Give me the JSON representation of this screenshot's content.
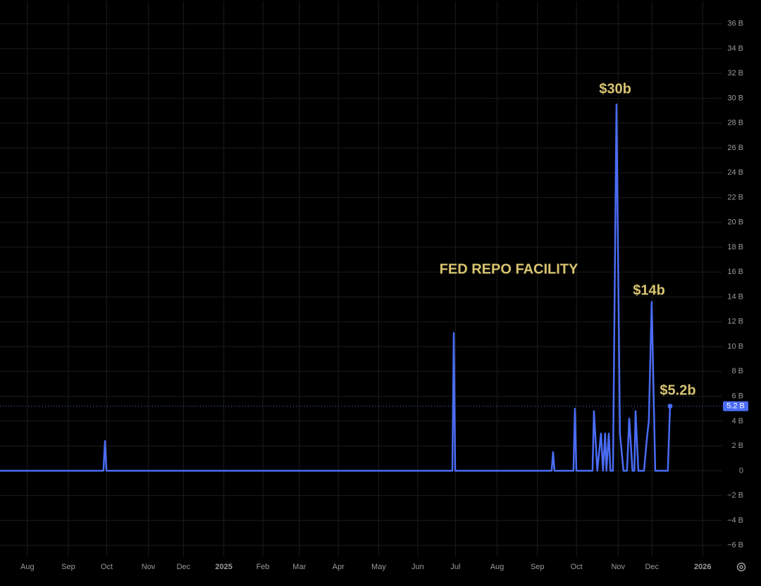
{
  "chart_data": {
    "type": "line",
    "color": "#4a6cf5",
    "annotations": [
      "FED REPO FACILITY",
      "$30b",
      "$14b",
      "$5.2b"
    ],
    "x": [
      0,
      79.5,
      80.7,
      81.8,
      347.6,
      348.7,
      349.8,
      423.9,
      425,
      426.1,
      440.7,
      441.8,
      442.9,
      455.3,
      456.4,
      459,
      461.8,
      463.4,
      465,
      466,
      467.8,
      469,
      471,
      473.7,
      476.4,
      479.1,
      481.8,
      483.5,
      486,
      487.5,
      488.4,
      490.5,
      494.9,
      497,
      498.6,
      500.8,
      503.5,
      513.2,
      514.9
    ],
    "values": [
      0,
      0,
      2.4,
      0,
      0,
      11.1,
      0,
      0,
      1.5,
      0,
      0,
      5.0,
      0,
      0,
      4.8,
      0,
      3,
      0,
      3,
      0,
      3,
      0,
      0,
      29.5,
      3,
      0,
      0,
      4.2,
      0,
      0,
      4.8,
      0,
      0,
      2.5,
      4,
      13.6,
      0,
      0,
      5.2
    ],
    "value_labels": [
      null,
      null,
      null,
      null,
      null,
      null,
      null,
      null,
      null,
      null,
      null,
      null,
      null,
      null,
      null,
      null,
      null,
      null,
      null,
      null,
      null,
      null,
      null,
      null,
      null,
      null,
      null,
      null,
      null,
      null,
      null,
      null,
      null,
      null,
      null,
      null,
      null,
      null,
      "5.2 B"
    ],
    "xlim": [
      0,
      555
    ],
    "xticks": [
      {
        "value": 21,
        "label": "Aug"
      },
      {
        "value": 52.5,
        "label": "Sep"
      },
      {
        "value": 82,
        "label": "Oct"
      },
      {
        "value": 114,
        "label": "Nov"
      },
      {
        "value": 141,
        "label": "Dec"
      },
      {
        "value": 172,
        "label": "2025"
      },
      {
        "value": 202,
        "label": "Feb"
      },
      {
        "value": 230,
        "label": "Mar"
      },
      {
        "value": 260,
        "label": "Apr"
      },
      {
        "value": 291,
        "label": "May"
      },
      {
        "value": 321,
        "label": "Jun"
      },
      {
        "value": 350,
        "label": "Jul"
      },
      {
        "value": 382,
        "label": "Aug"
      },
      {
        "value": 413,
        "label": "Sep"
      },
      {
        "value": 443,
        "label": "Oct"
      },
      {
        "value": 475,
        "label": "Nov"
      },
      {
        "value": 501,
        "label": "Dec"
      },
      {
        "value": 540,
        "label": "2026"
      }
    ],
    "ylim": [
      -6.9,
      37.8
    ],
    "yticks": [
      {
        "value": -6,
        "label": "−6 B"
      },
      {
        "value": -4,
        "label": "−4 B"
      },
      {
        "value": -2,
        "label": "−2 B"
      },
      0,
      {
        "value": 2,
        "label": "2 B"
      },
      {
        "value": 4,
        "label": "4 B"
      },
      {
        "value": 6,
        "label": "6 B"
      },
      {
        "value": 8,
        "label": "8 B"
      },
      {
        "value": 10,
        "label": "10 B"
      },
      {
        "value": 12,
        "label": "12 B"
      },
      {
        "value": 14,
        "label": "14 B"
      },
      {
        "value": 16,
        "label": "16 B"
      },
      {
        "value": 18,
        "label": "18 B"
      },
      {
        "value": 20,
        "label": "20 B"
      },
      {
        "value": 22,
        "label": "22 B"
      },
      {
        "value": 24,
        "label": "24 B"
      },
      {
        "value": 26,
        "label": "26 B"
      },
      {
        "value": 28,
        "label": "28 B"
      },
      {
        "value": 30,
        "label": "30 B"
      },
      {
        "value": 32,
        "label": "32 B"
      },
      {
        "value": 34,
        "label": "34 B"
      },
      {
        "value": 36,
        "label": "36 B"
      }
    ],
    "grid": true
  }
}
